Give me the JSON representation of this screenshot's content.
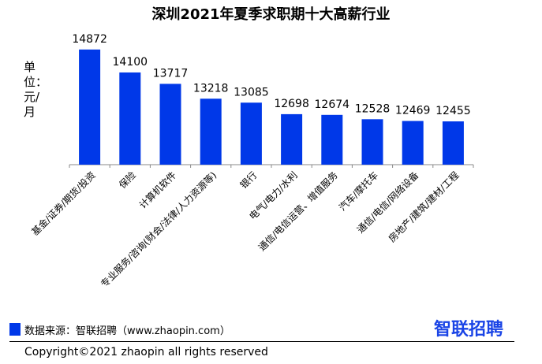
{
  "chart_data": {
    "type": "bar",
    "title": "深圳2021年夏季求职期十大高薪行业",
    "ylabel": "单位：元/月",
    "categories": [
      "基金/证券/期货/投资",
      "保险",
      "计算机软件",
      "专业服务/咨询(财会/法律/人力资源等)",
      "银行",
      "电气/电力/水利",
      "通信/电信运营、增值服务",
      "汽车/摩托车",
      "通信/电信/网络设备",
      "房地产/建筑/建材/工程"
    ],
    "values": [
      14872,
      14100,
      13717,
      13218,
      13085,
      12698,
      12674,
      12528,
      12469,
      12455
    ],
    "ylim": [
      11000,
      15000
    ],
    "grid": false,
    "bar_color": "#0038e8"
  },
  "footer": {
    "source": "数据来源：智联招聘（www.zhaopin.com）",
    "logo": "智联招聘",
    "copyright": "Copyright©2021 zhaopin all rights reserved"
  }
}
